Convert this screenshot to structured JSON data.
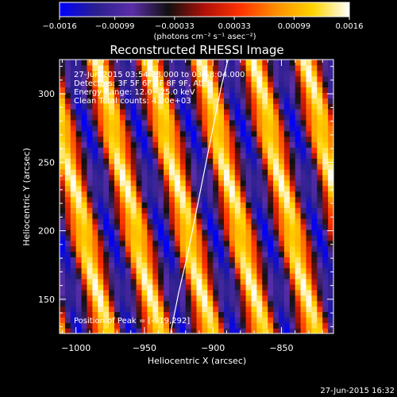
{
  "chart_data": {
    "type": "heatmap",
    "title": "Reconstructed RHESSI Image",
    "xlabel": "Heliocentric X (arcsec)",
    "ylabel": "Heliocentric Y (arcsec)",
    "xlim": [
      -1012,
      -812
    ],
    "ylim": [
      125,
      325
    ],
    "xticks": [
      -1000,
      -950,
      -900,
      -850
    ],
    "xtick_labels": [
      "−1000",
      "−950",
      "−900",
      "−850"
    ],
    "yticks": [
      150,
      200,
      250,
      300
    ],
    "ytick_labels": [
      "150",
      "200",
      "250",
      "300"
    ],
    "colorbar": {
      "label": "(photons cm⁻² s⁻¹ asec⁻²)",
      "range": [
        -0.0016,
        0.0016
      ],
      "ticks": [
        -0.0016,
        -0.00099,
        -0.00033,
        0.00033,
        0.00099,
        0.0016
      ],
      "tick_labels": [
        "−0.0016",
        "−0.00099",
        "−0.00033",
        "0.00033",
        "0.00099",
        "0.0016"
      ],
      "colormap": [
        "#0000ff",
        "#2a1f8f",
        "#5a2ea8",
        "#101010",
        "#b01008",
        "#ff3300",
        "#ff9000",
        "#ffd400",
        "#ffffff"
      ]
    },
    "annotations": [
      "27-Jun-2015 03:54:28.000 to 03:58:04.000",
      "Detectors: 3F 5F 6F 7F 8F 9F, Att 0",
      "Energy Range: 12.0 - 25.0 keV",
      "Clean    Total counts: 4.00e+03"
    ],
    "peak_label": "Position of Peak = [-919,292]",
    "peak": [
      -919,
      292
    ],
    "grid": false,
    "pattern": {
      "description": "diagonal fringe stripes",
      "stripe_period_arcsec": 38,
      "stripe_slope": 4.5,
      "amplitude": 0.0016
    },
    "limb_curve": {
      "x": [
        -931,
        -925,
        -918,
        -912,
        -906,
        -900,
        -894,
        -889
      ],
      "y": [
        125,
        155,
        185,
        215,
        245,
        275,
        305,
        325
      ],
      "color": "#ffffff"
    }
  },
  "footer_timestamp": "27-Jun-2015 16:32"
}
